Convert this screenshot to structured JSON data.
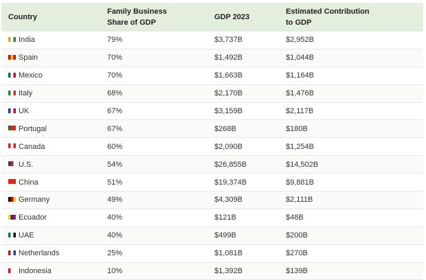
{
  "table": {
    "headers": [
      "Country",
      "Family Business\nShare of GDP",
      "GDP 2023",
      "Estimated Contribution\nto GDP"
    ],
    "rows": [
      {
        "country": "India",
        "share": "79%",
        "gdp": "$3,737B",
        "contribution": "$2,952B",
        "flag_colors": [
          "#f29a33",
          "#ffffff",
          "#2c8a3a"
        ]
      },
      {
        "country": "Spain",
        "share": "70%",
        "gdp": "$1,492B",
        "contribution": "$1,044B",
        "flag_colors": [
          "#c8102e",
          "#f1bf00",
          "#c8102e"
        ]
      },
      {
        "country": "Mexico",
        "share": "70%",
        "gdp": "$1,663B",
        "contribution": "$1,164B",
        "flag_colors": [
          "#1e6b3b",
          "#ffffff",
          "#c8102e"
        ]
      },
      {
        "country": "Italy",
        "share": "68%",
        "gdp": "$2,170B",
        "contribution": "$1,476B",
        "flag_colors": [
          "#1f8a3b",
          "#ffffff",
          "#d22b2b"
        ]
      },
      {
        "country": "UK",
        "share": "67%",
        "gdp": "$3,159B",
        "contribution": "$2,117B",
        "flag_colors": [
          "#1d3a8a",
          "#ffffff",
          "#c8102e"
        ]
      },
      {
        "country": "Portugal",
        "share": "67%",
        "gdp": "$268B",
        "contribution": "$180B",
        "flag_colors": [
          "#1e6b2f",
          "#d8281f",
          "#d8281f"
        ]
      },
      {
        "country": "Canada",
        "share": "60%",
        "gdp": "$2,090B",
        "contribution": "$1,254B",
        "flag_colors": [
          "#d52b1e",
          "#ffffff",
          "#d52b1e"
        ]
      },
      {
        "country": "U.S.",
        "share": "54%",
        "gdp": "$26,855B",
        "contribution": "$14,502B",
        "flag_colors": [
          "#3c3b6e",
          "#b22234",
          "#ffffff"
        ]
      },
      {
        "country": "China",
        "share": "51%",
        "gdp": "$19,374B",
        "contribution": "$9,881B",
        "flag_colors": [
          "#de2910",
          "#de2910",
          "#de2910"
        ]
      },
      {
        "country": "Germany",
        "share": "49%",
        "gdp": "$4,309B",
        "contribution": "$2,111B",
        "flag_colors": [
          "#111111",
          "#dd0000",
          "#ffce00"
        ]
      },
      {
        "country": "Ecuador",
        "share": "40%",
        "gdp": "$121B",
        "contribution": "$48B",
        "flag_colors": [
          "#ffd100",
          "#0a3a8c",
          "#d21034"
        ]
      },
      {
        "country": "UAE",
        "share": "40%",
        "gdp": "$499B",
        "contribution": "$200B",
        "flag_colors": [
          "#00843d",
          "#ffffff",
          "#111111"
        ]
      },
      {
        "country": "Netherlands",
        "share": "25%",
        "gdp": "$1,081B",
        "contribution": "$270B",
        "flag_colors": [
          "#ae1c28",
          "#ffffff",
          "#21468b"
        ]
      },
      {
        "country": "Indonesia",
        "share": "10%",
        "gdp": "$1,392B",
        "contribution": "$139B",
        "flag_colors": [
          "#ce1126",
          "#ffffff",
          "#ffffff"
        ]
      }
    ]
  }
}
